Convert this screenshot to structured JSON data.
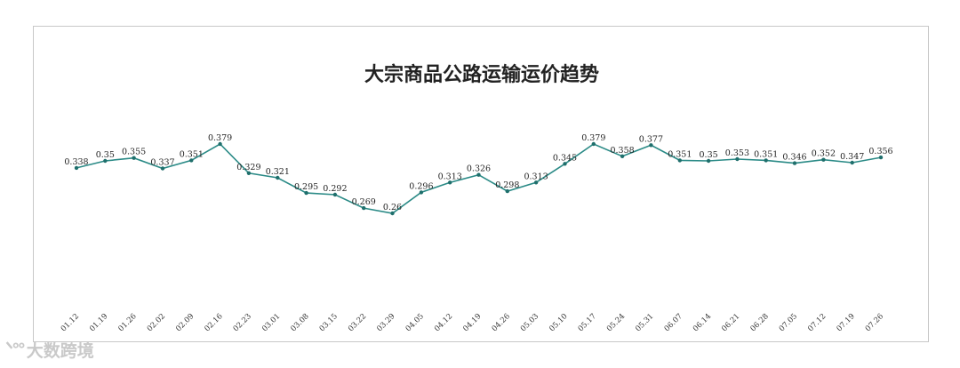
{
  "chart_data": {
    "type": "line",
    "title": "大宗商品公路运输运价趋势",
    "categories": [
      "01.12",
      "01.19",
      "01.26",
      "02.02",
      "02.09",
      "02.16",
      "02.23",
      "03.01",
      "03.08",
      "03.15",
      "03.22",
      "03.29",
      "04.05",
      "04.12",
      "04.19",
      "04.26",
      "05.03",
      "05.10",
      "05.17",
      "05.24",
      "05.31",
      "06.07",
      "06.14",
      "06.21",
      "06.28",
      "07.05",
      "07.12",
      "07.19",
      "07.26"
    ],
    "values": [
      0.338,
      0.35,
      0.355,
      0.337,
      0.351,
      0.379,
      0.329,
      0.321,
      0.295,
      0.292,
      0.269,
      0.26,
      0.296,
      0.313,
      0.326,
      0.298,
      0.313,
      0.345,
      0.379,
      0.358,
      0.377,
      0.351,
      0.35,
      0.353,
      0.351,
      0.346,
      0.352,
      0.347,
      0.356
    ],
    "value_labels": [
      "0.338",
      "0.35",
      "0.355",
      "0.337",
      "0.351",
      "0.379",
      "0.329",
      "0.321",
      "0.295",
      "0.292",
      "0.269",
      "0.26",
      "0.296",
      "0.313",
      "0.326",
      "0.298",
      "0.313",
      "0.345",
      "0.379",
      "0.358",
      "0.377",
      "0.351",
      "0.35",
      "0.353",
      "0.351",
      "0.346",
      "0.352",
      "0.347",
      "0.356"
    ],
    "line_color": "#2a8a86",
    "marker_color": "#1f6f6c",
    "xlabel": "",
    "ylabel": "",
    "grid": false,
    "legend": "none"
  },
  "watermark": {
    "logo": "ᐠᐤᐤ",
    "text": "大数跨境"
  }
}
